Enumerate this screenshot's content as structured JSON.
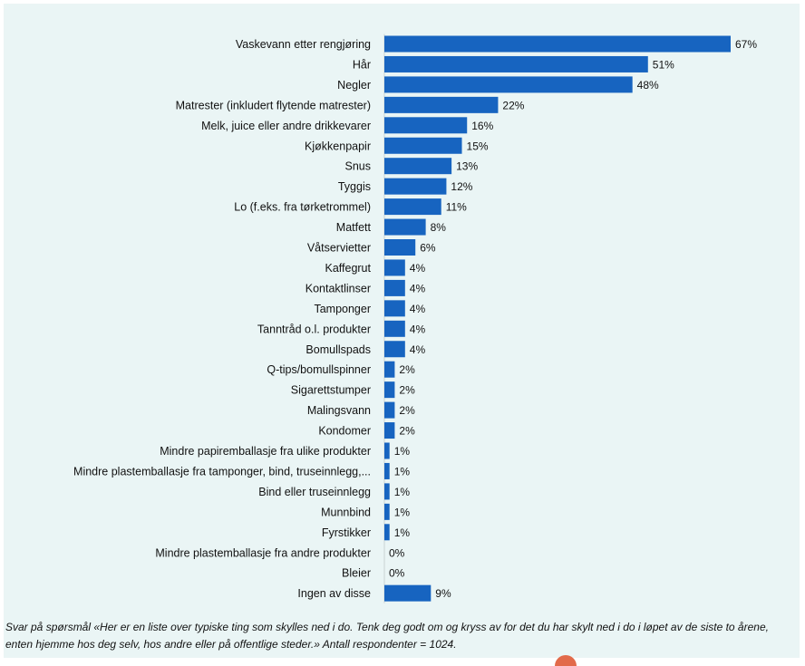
{
  "chart_data": {
    "type": "bar",
    "orientation": "horizontal",
    "categories": [
      "Vaskevann etter rengjøring",
      "Hår",
      "Negler",
      "Matrester (inkludert flytende matrester)",
      "Melk, juice eller andre drikkevarer",
      "Kjøkkenpapir",
      "Snus",
      "Tyggis",
      "Lo (f.eks. fra tørketrommel)",
      "Matfett",
      "Våtservietter",
      "Kaffegrut",
      "Kontaktlinser",
      "Tamponger",
      "Tanntråd o.l. produkter",
      "Bomullspads",
      "Q-tips/bomullspinner",
      "Sigarettstumper",
      "Malingsvann",
      "Kondomer",
      "Mindre papiremballasje fra ulike produkter",
      "Mindre plastemballasje fra tamponger, bind, truseinnlegg,...",
      "Bind eller truseinnlegg",
      "Munnbind",
      "Fyrstikker",
      "Mindre plastemballasje fra andre produkter",
      "Bleier",
      "Ingen av disse"
    ],
    "values": [
      67,
      51,
      48,
      22,
      16,
      15,
      13,
      12,
      11,
      8,
      6,
      4,
      4,
      4,
      4,
      4,
      2,
      2,
      2,
      2,
      1,
      1,
      1,
      1,
      1,
      0,
      0,
      9
    ],
    "value_labels": [
      "67%",
      "51%",
      "48%",
      "22%",
      "16%",
      "15%",
      "13%",
      "12%",
      "11%",
      "8%",
      "6%",
      "4%",
      "4%",
      "4%",
      "4%",
      "4%",
      "2%",
      "2%",
      "2%",
      "2%",
      "1%",
      "1%",
      "1%",
      "1%",
      "1%",
      "0%",
      "0%",
      "9%"
    ],
    "unit": "%",
    "xlim": [
      0,
      67
    ],
    "grid": false,
    "legend": "none",
    "bar_color": "#1764c0",
    "background_color": "#eaf5f5"
  },
  "note": "Svar på spørsmål «Her er en liste over typiske ting som skylles ned i do. Tenk deg godt om og kryss av for det du har skylt ned i do i løpet av de siste to årene, enten hjemme hos deg selv, hos andre eller på offentlige steder.» Antall respondenter = 1024."
}
